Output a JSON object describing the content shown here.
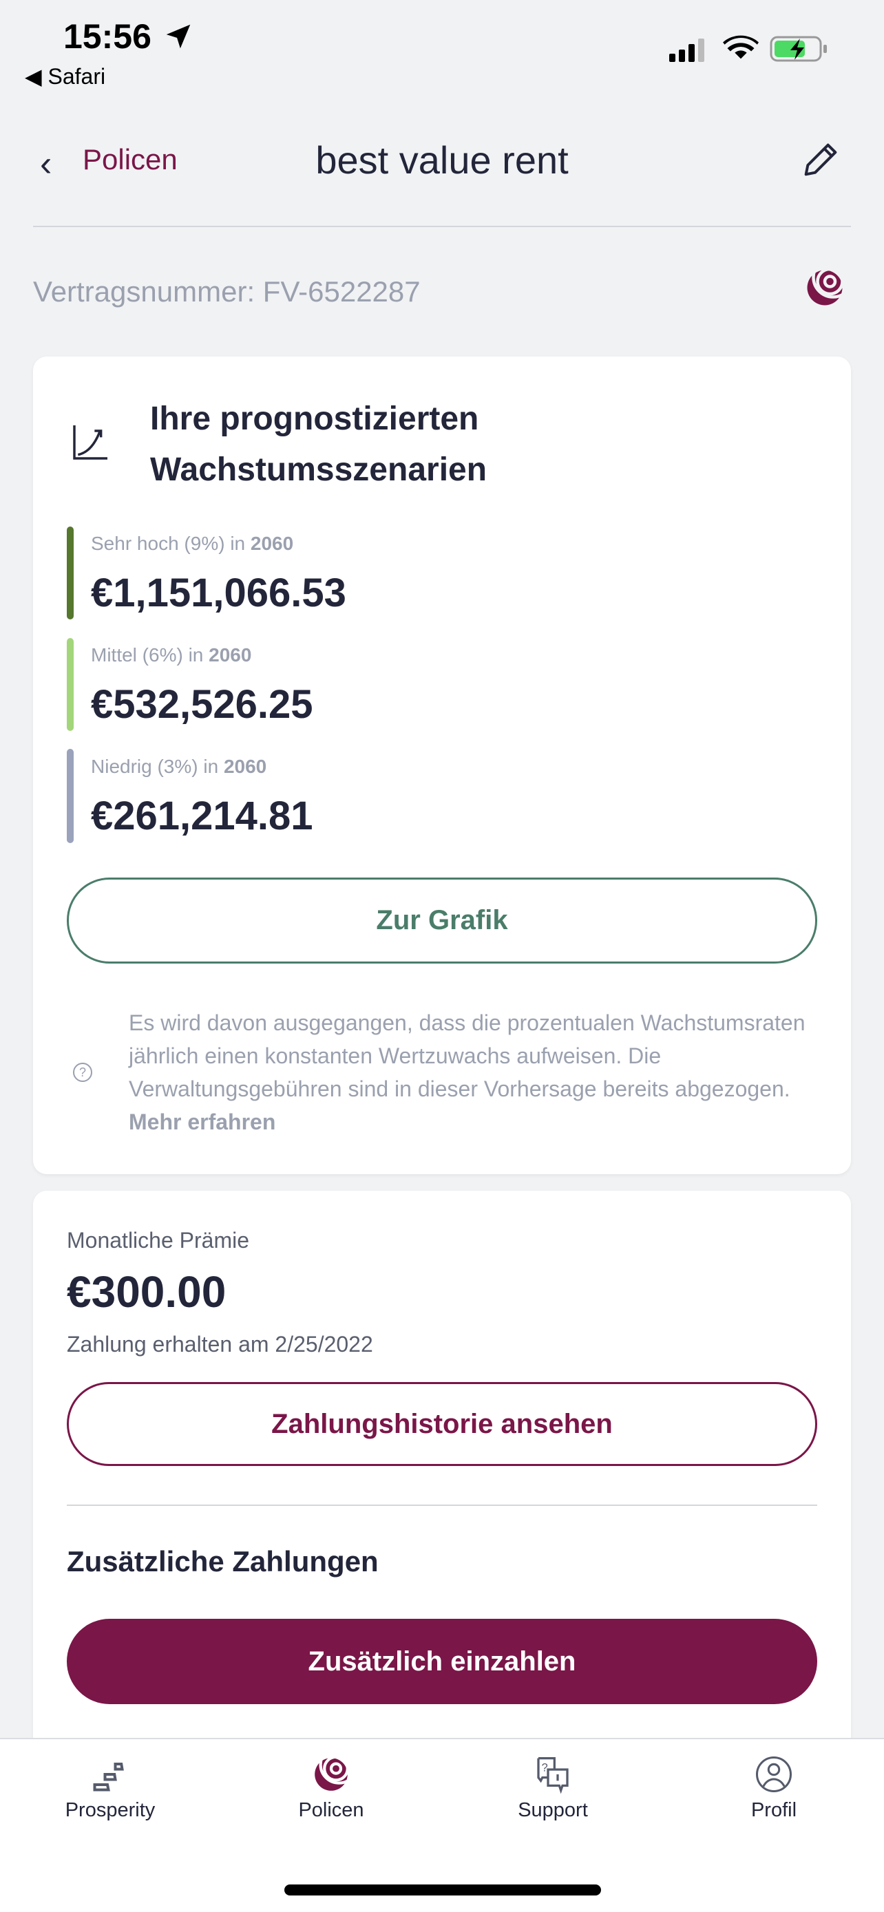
{
  "status_bar": {
    "time": "15:56",
    "back_app": "Safari"
  },
  "header": {
    "back_label": "Policen",
    "title": "best value rent"
  },
  "contract": {
    "number_label": "Vertragsnummer: FV-6522287"
  },
  "growth_card": {
    "heading_line1": "Ihre prognostizierten",
    "heading_line2": "Wachstumsszenarien",
    "scenarios": [
      {
        "label": "Sehr hoch (9%) in ",
        "year": "2060",
        "value": "€1,151,066.53",
        "color": "#55772e"
      },
      {
        "label": "Mittel (6%) in ",
        "year": "2060",
        "value": "€532,526.25",
        "color": "#a3d67a"
      },
      {
        "label": "Niedrig (3%) in ",
        "year": "2060",
        "value": "€261,214.81",
        "color": "#9aa3bb"
      }
    ],
    "chart_button": "Zur Grafik",
    "disclaimer": "Es wird davon ausgegangen, dass die prozentualen Wachstumsraten jährlich einen konstanten Wertzuwachs aufweisen. Die Verwaltungsgebühren sind in dieser Vorhersage bereits abgezogen. ",
    "learn_more": "Mehr erfahren"
  },
  "premium_card": {
    "label": "Monatliche Prämie",
    "amount": "€300.00",
    "paid_note": "Zahlung erhalten am 2/25/2022",
    "history_button": "Zahlungshistorie ansehen",
    "extra_heading": "Zusätzliche Zahlungen",
    "extra_button": "Zusätzlich einzahlen"
  },
  "nav": [
    {
      "label": "Prosperity",
      "icon": "stairs-icon"
    },
    {
      "label": "Policen",
      "icon": "globe-logo-icon"
    },
    {
      "label": "Support",
      "icon": "chat-bubbles-icon"
    },
    {
      "label": "Profil",
      "icon": "user-circle-icon"
    }
  ],
  "colors": {
    "brand": "#7a1648",
    "accent_green": "#4a7d6a"
  }
}
